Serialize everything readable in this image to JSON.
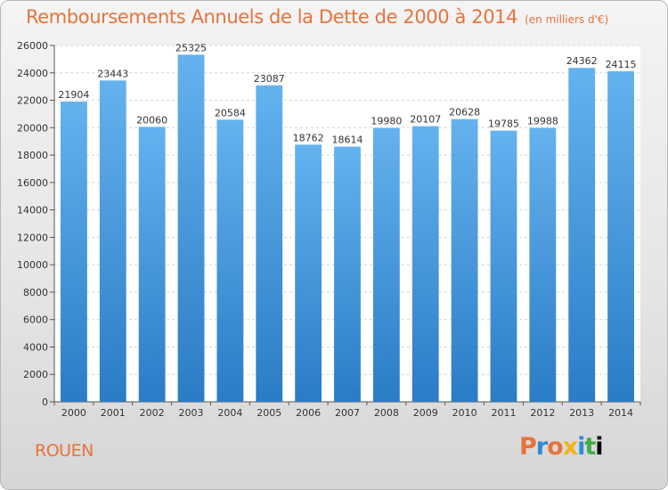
{
  "title": "Remboursements Annuels de la Dette de 2000 à 2014",
  "subtitle": "(en milliers d'€)",
  "city": "ROUEN",
  "logo": "Proxiti",
  "colors": {
    "accent": "#e8733a",
    "bar_light": "#64b2ee",
    "bar_dark": "#2a7cc6"
  },
  "chart_data": {
    "type": "bar",
    "title": "Remboursements Annuels de la Dette de 2000 à 2014",
    "subtitle": "(en milliers d'€)",
    "xlabel": "",
    "ylabel": "",
    "categories": [
      "2000",
      "2001",
      "2002",
      "2003",
      "2004",
      "2005",
      "2006",
      "2007",
      "2008",
      "2009",
      "2010",
      "2011",
      "2012",
      "2013",
      "2014"
    ],
    "values": [
      21904,
      23443,
      20060,
      25325,
      20584,
      23087,
      18762,
      18614,
      19980,
      20107,
      20628,
      19785,
      19988,
      24362,
      24115
    ],
    "ylim": [
      0,
      26000
    ],
    "yticks": [
      0,
      2000,
      4000,
      6000,
      8000,
      10000,
      12000,
      14000,
      16000,
      18000,
      20000,
      22000,
      24000,
      26000
    ],
    "grid": true,
    "legend": "none"
  }
}
